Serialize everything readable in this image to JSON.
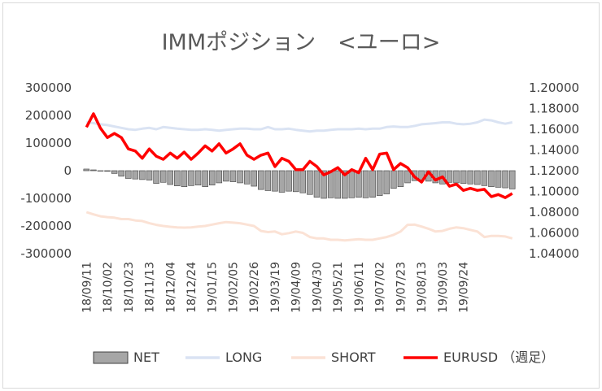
{
  "chart_data": {
    "type": "bar+line",
    "title": "IMMポジション　<ユーロ>",
    "xlabel": "",
    "ylabel_left": "",
    "ylabel_right": "",
    "ylim_left": [
      -300000,
      300000
    ],
    "ylim_right": [
      1.04,
      1.2
    ],
    "yticks_left": [
      "300000",
      "200000",
      "100000",
      "0",
      "-100000",
      "-200000",
      "-300000"
    ],
    "yticks_right": [
      "1.20000",
      "1.18000",
      "1.16000",
      "1.14000",
      "1.12000",
      "1.10000",
      "1.08000",
      "1.06000",
      "1.04000"
    ],
    "x_tick_labels": [
      "18/09/11",
      "18/10/02",
      "18/10/23",
      "18/11/13",
      "18/12/04",
      "18/12/24",
      "19/01/15",
      "19/02/05",
      "19/02/26",
      "19/03/19",
      "19/04/09",
      "19/04/30",
      "19/05/21",
      "19/06/11",
      "19/07/02",
      "19/07/23",
      "19/08/13",
      "19/09/03",
      "19/09/24"
    ],
    "legend": [
      "NET",
      "LONG",
      "SHORT",
      "EURUSD （週足）"
    ],
    "legend_position": "bottom",
    "series": [
      {
        "name": "NET",
        "type": "bar",
        "axis": "left",
        "values": [
          6000,
          3000,
          0,
          -2000,
          -10000,
          -20000,
          -28000,
          -30000,
          -32000,
          -34000,
          -46000,
          -42000,
          -50000,
          -55000,
          -58000,
          -54000,
          -52000,
          -58000,
          -52000,
          -44000,
          -38000,
          -40000,
          -44000,
          -48000,
          -56000,
          -68000,
          -72000,
          -74000,
          -78000,
          -74000,
          -76000,
          -80000,
          -86000,
          -96000,
          -100000,
          -98000,
          -100000,
          -100000,
          -98000,
          -96000,
          -98000,
          -96000,
          -90000,
          -84000,
          -64000,
          -58000,
          -44000,
          -36000,
          -34000,
          -38000,
          -44000,
          -48000,
          -42000,
          -44000,
          -46000,
          -48000,
          -50000,
          -54000,
          -58000,
          -60000,
          -62000,
          -66000
        ]
      },
      {
        "name": "LONG",
        "type": "line",
        "axis": "left",
        "values": [
          176000,
          172000,
          168000,
          165000,
          160000,
          155000,
          150000,
          148000,
          152000,
          155000,
          150000,
          158000,
          155000,
          152000,
          150000,
          148000,
          148000,
          150000,
          148000,
          145000,
          148000,
          150000,
          152000,
          152000,
          150000,
          150000,
          158000,
          150000,
          150000,
          152000,
          148000,
          145000,
          142000,
          145000,
          145000,
          148000,
          150000,
          150000,
          150000,
          152000,
          150000,
          152000,
          152000,
          158000,
          160000,
          158000,
          158000,
          162000,
          168000,
          170000,
          172000,
          175000,
          175000,
          170000,
          168000,
          170000,
          175000,
          185000,
          182000,
          175000,
          170000,
          175000
        ]
      },
      {
        "name": "SHORT",
        "type": "line",
        "axis": "left",
        "values": [
          -150000,
          -158000,
          -165000,
          -168000,
          -170000,
          -175000,
          -175000,
          -180000,
          -182000,
          -190000,
          -196000,
          -200000,
          -203000,
          -205000,
          -206000,
          -205000,
          -202000,
          -200000,
          -195000,
          -190000,
          -186000,
          -188000,
          -190000,
          -195000,
          -200000,
          -218000,
          -222000,
          -220000,
          -230000,
          -226000,
          -220000,
          -225000,
          -240000,
          -245000,
          -245000,
          -250000,
          -250000,
          -252000,
          -250000,
          -248000,
          -250000,
          -250000,
          -245000,
          -240000,
          -232000,
          -220000,
          -196000,
          -195000,
          -202000,
          -210000,
          -220000,
          -218000,
          -210000,
          -205000,
          -208000,
          -214000,
          -220000,
          -240000,
          -236000,
          -236000,
          -238000,
          -245000
        ]
      },
      {
        "name": "EURUSD （週足）",
        "type": "line",
        "axis": "right",
        "values": [
          1.162,
          1.175,
          1.161,
          1.152,
          1.156,
          1.152,
          1.141,
          1.139,
          1.132,
          1.141,
          1.134,
          1.131,
          1.137,
          1.132,
          1.138,
          1.131,
          1.137,
          1.144,
          1.139,
          1.146,
          1.137,
          1.141,
          1.146,
          1.135,
          1.131,
          1.135,
          1.137,
          1.124,
          1.132,
          1.129,
          1.121,
          1.121,
          1.129,
          1.124,
          1.116,
          1.119,
          1.123,
          1.116,
          1.121,
          1.118,
          1.132,
          1.121,
          1.136,
          1.137,
          1.121,
          1.127,
          1.123,
          1.114,
          1.109,
          1.119,
          1.111,
          1.114,
          1.105,
          1.107,
          1.101,
          1.103,
          1.101,
          1.102,
          1.095,
          1.097,
          1.094,
          1.098
        ]
      }
    ],
    "colors": {
      "NET": "#a6a6a6",
      "NET_edge": "#404040",
      "LONG": "#dae3f3",
      "SHORT": "#fbe2d5",
      "EURUSD": "#ff0000"
    }
  }
}
